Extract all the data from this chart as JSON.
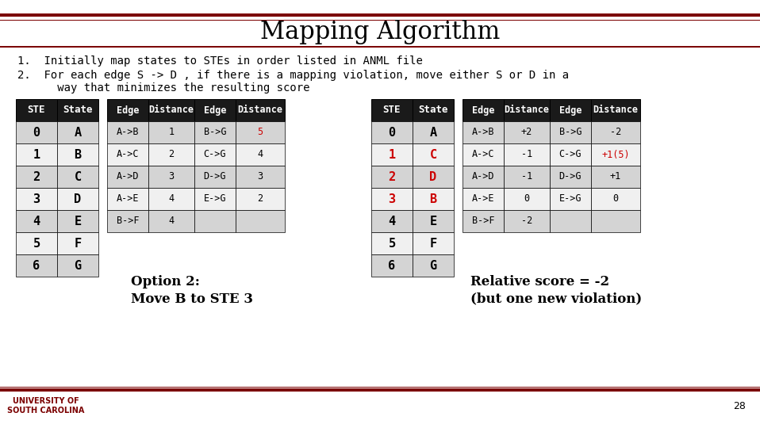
{
  "title": "Mapping Algorithm",
  "bullet1": "1.  Initially map states to STEs in order listed in ANML file",
  "bullet2_line1": "2.  For each edge S -> D , if there is a mapping violation, move either S or D in a",
  "bullet2_line2": "      way that minimizes the resulting score",
  "bg_color": "#ffffff",
  "header_color": "#7b0000",
  "dark_header_bg": "#1a1a1a",
  "light_row_bg": "#d4d4d4",
  "white_row_bg": "#f0f0f0",
  "red_color": "#cc0000",
  "black_color": "#000000",
  "table1_ste": [
    "0",
    "1",
    "2",
    "3",
    "4",
    "5",
    "6"
  ],
  "table1_state": [
    "A",
    "B",
    "C",
    "D",
    "E",
    "F",
    "G"
  ],
  "table1_state_red": [
    false,
    false,
    false,
    false,
    false,
    false,
    false
  ],
  "table1_ste_red": [
    false,
    false,
    false,
    false,
    false,
    false,
    false
  ],
  "edge_table1": [
    [
      "A->B",
      "1",
      "B->G",
      "5"
    ],
    [
      "A->C",
      "2",
      "C->G",
      "4"
    ],
    [
      "A->D",
      "3",
      "D->G",
      "3"
    ],
    [
      "A->E",
      "4",
      "E->G",
      "2"
    ],
    [
      "B->F",
      "4",
      "",
      ""
    ]
  ],
  "edge1_red": [
    [
      false,
      false,
      false,
      true
    ],
    [
      false,
      false,
      false,
      false
    ],
    [
      false,
      false,
      false,
      false
    ],
    [
      false,
      false,
      false,
      false
    ],
    [
      false,
      false,
      false,
      false
    ]
  ],
  "option_text1": "Option 2:",
  "option_text2": "Move B to STE 3",
  "table2_ste": [
    "0",
    "1",
    "2",
    "3",
    "4",
    "5",
    "6"
  ],
  "table2_state": [
    "A",
    "C",
    "D",
    "B",
    "E",
    "F",
    "G"
  ],
  "table2_state_red": [
    false,
    true,
    true,
    true,
    false,
    false,
    false
  ],
  "table2_ste_red": [
    false,
    true,
    true,
    true,
    false,
    false,
    false
  ],
  "edge_table2": [
    [
      "A->B",
      "+2",
      "B->G",
      "-2"
    ],
    [
      "A->C",
      "-1",
      "C->G",
      "+1(5)"
    ],
    [
      "A->D",
      "-1",
      "D->G",
      "+1"
    ],
    [
      "A->E",
      "0",
      "E->G",
      "0"
    ],
    [
      "B->F",
      "-2",
      "",
      ""
    ]
  ],
  "edge2_red": [
    [
      false,
      false,
      false,
      false
    ],
    [
      false,
      false,
      false,
      true
    ],
    [
      false,
      false,
      false,
      false
    ],
    [
      false,
      false,
      false,
      false
    ],
    [
      false,
      false,
      false,
      false
    ]
  ],
  "score_text1": "Relative score = -2",
  "score_text2": "(but one new violation)",
  "slide_number": "28"
}
